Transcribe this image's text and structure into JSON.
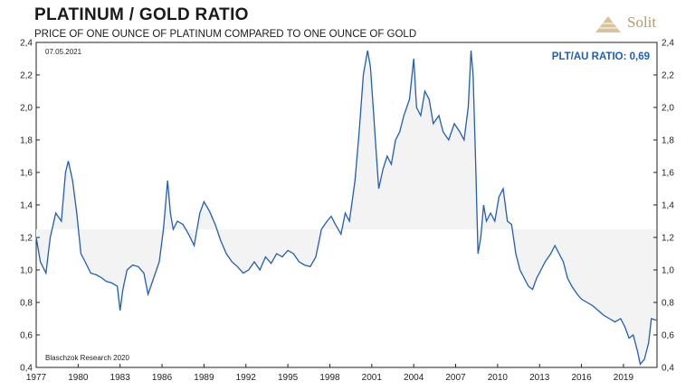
{
  "header": {
    "title": "PLATINUM / GOLD RATIO",
    "subtitle": "PRICE OF ONE OUNCE OF PLATINUM COMPARED TO ONE OUNCE OF GOLD",
    "logo_text": "Solit"
  },
  "chart_data": {
    "type": "line",
    "date_label": "07.05.2021",
    "ratio_label": "PLT/AU RATIO: 0,69",
    "source": "Blaschzok Research 2020",
    "xlim": [
      1977,
      2021.4
    ],
    "ylim": [
      0.4,
      2.4
    ],
    "y_ticks": [
      "0,4",
      "0,6",
      "0,8",
      "1,0",
      "1,2",
      "1,4",
      "1,6",
      "1,8",
      "2,0",
      "2,2",
      "2,4"
    ],
    "x_ticks": [
      "1977",
      "1980",
      "1983",
      "1986",
      "1989",
      "1992",
      "1995",
      "1998",
      "2001",
      "2004",
      "2007",
      "2010",
      "2013",
      "2016",
      "2019"
    ],
    "baseline_band": [
      1.0,
      1.25
    ],
    "line_color": "#1f5fb5",
    "series": [
      {
        "x": [
          1977,
          1977.3,
          1977.7,
          1978,
          1978.4,
          1978.8,
          1979.1,
          1979.3,
          1979.6,
          1979.9,
          1980.2,
          1980.5,
          1980.9,
          1981.3,
          1981.7,
          1982,
          1982.4,
          1982.8,
          1983,
          1983.2,
          1983.5,
          1983.9,
          1984.3,
          1984.7,
          1985,
          1985.4,
          1985.8,
          1986.1,
          1986.4,
          1986.6,
          1986.8,
          1987.1,
          1987.5,
          1987.9,
          1988.3,
          1988.7,
          1989,
          1989.4,
          1989.8,
          1990.2,
          1990.6,
          1991,
          1991.4,
          1991.8,
          1992.2,
          1992.6,
          1993,
          1993.4,
          1993.8,
          1994.2,
          1994.6,
          1995,
          1995.4,
          1995.8,
          1996.2,
          1996.6,
          1997,
          1997.4,
          1997.8,
          1998.1,
          1998.4,
          1998.8,
          1999.1,
          1999.4,
          1999.8,
          2000.1,
          2000.4,
          2000.7,
          2000.9,
          2001.1,
          2001.3,
          2001.5,
          2001.8,
          2002.1,
          2002.4,
          2002.7,
          2003,
          2003.3,
          2003.7,
          2004,
          2004.2,
          2004.5,
          2004.8,
          2005.1,
          2005.4,
          2005.8,
          2006.1,
          2006.5,
          2006.9,
          2007.3,
          2007.6,
          2007.9,
          2008.1,
          2008.25,
          2008.45,
          2008.6,
          2008.8,
          2009,
          2009.2,
          2009.5,
          2009.8,
          2010.1,
          2010.4,
          2010.7,
          2011,
          2011.3,
          2011.6,
          2011.9,
          2012.2,
          2012.5,
          2012.8,
          2013.1,
          2013.4,
          2013.8,
          2014.1,
          2014.4,
          2014.7,
          2015,
          2015.3,
          2015.7,
          2016,
          2016.4,
          2016.8,
          2017.2,
          2017.6,
          2018,
          2018.4,
          2018.8,
          2019.1,
          2019.4,
          2019.7,
          2020,
          2020.2,
          2020.5,
          2020.8,
          2021,
          2021.35
        ],
        "y": [
          1.2,
          1.05,
          0.98,
          1.2,
          1.35,
          1.3,
          1.6,
          1.67,
          1.55,
          1.35,
          1.1,
          1.05,
          0.98,
          0.97,
          0.95,
          0.93,
          0.92,
          0.9,
          0.75,
          0.88,
          1.0,
          1.03,
          1.02,
          0.98,
          0.85,
          0.95,
          1.05,
          1.25,
          1.55,
          1.35,
          1.25,
          1.3,
          1.28,
          1.22,
          1.15,
          1.35,
          1.42,
          1.36,
          1.28,
          1.18,
          1.1,
          1.05,
          1.02,
          0.98,
          1.0,
          1.05,
          1.0,
          1.08,
          1.04,
          1.1,
          1.08,
          1.12,
          1.1,
          1.05,
          1.03,
          1.02,
          1.08,
          1.25,
          1.3,
          1.33,
          1.28,
          1.22,
          1.35,
          1.3,
          1.55,
          1.85,
          2.2,
          2.35,
          2.25,
          2.0,
          1.75,
          1.5,
          1.62,
          1.7,
          1.65,
          1.8,
          1.85,
          1.95,
          2.05,
          2.3,
          2.0,
          1.95,
          2.1,
          2.05,
          1.9,
          1.95,
          1.85,
          1.8,
          1.9,
          1.85,
          1.8,
          2.0,
          2.35,
          2.2,
          1.6,
          1.1,
          1.2,
          1.4,
          1.3,
          1.35,
          1.3,
          1.45,
          1.5,
          1.3,
          1.28,
          1.1,
          1.0,
          0.95,
          0.9,
          0.88,
          0.95,
          1.0,
          1.05,
          1.1,
          1.15,
          1.1,
          1.05,
          0.95,
          0.9,
          0.85,
          0.82,
          0.8,
          0.78,
          0.75,
          0.72,
          0.7,
          0.68,
          0.7,
          0.65,
          0.58,
          0.6,
          0.5,
          0.42,
          0.45,
          0.55,
          0.7,
          0.69
        ]
      }
    ]
  }
}
